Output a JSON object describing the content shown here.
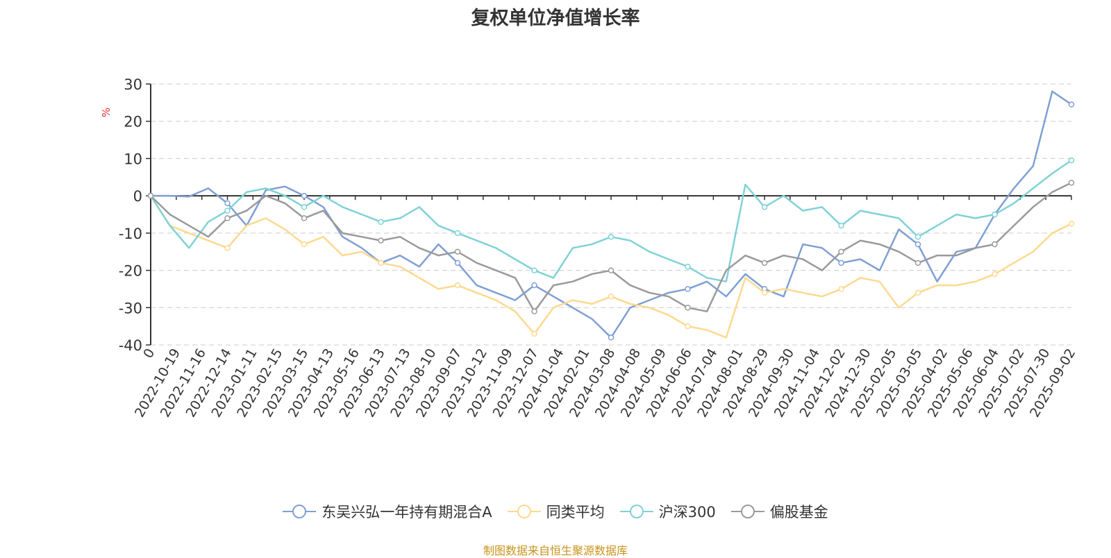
{
  "chart_data": {
    "type": "line",
    "title": "复权单位净值增长率",
    "ylabel": "%",
    "ylim": [
      -40,
      30
    ],
    "yticks": [
      30,
      20,
      10,
      0,
      -10,
      -20,
      -30,
      -40
    ],
    "x_start": "0",
    "xtick_labels": [
      "0",
      "2022-10-19",
      "2022-11-16",
      "2022-12-14",
      "2023-01-11",
      "2023-02-15",
      "2023-03-15",
      "2023-04-13",
      "2023-05-16",
      "2023-06-13",
      "2023-07-13",
      "2023-08-10",
      "2023-09-07",
      "2023-10-12",
      "2023-11-09",
      "2023-12-07",
      "2024-01-04",
      "2024-02-01",
      "2024-03-08",
      "2024-04-08",
      "2024-05-09",
      "2024-06-06",
      "2024-07-04",
      "2024-08-01",
      "2024-08-29",
      "2024-09-30",
      "2024-11-04",
      "2024-12-02",
      "2024-12-30",
      "2025-02-05",
      "2025-03-05",
      "2025-04-02",
      "2025-05-06",
      "2025-06-04",
      "2025-07-02",
      "2025-07-30",
      "2025-09-02"
    ],
    "grid": true,
    "legend_position": "bottom",
    "series": [
      {
        "name": "东吴兴弘一年持有期混合A",
        "color": "#7f9fd4",
        "values": [
          0,
          0,
          -0.2,
          2,
          -2,
          -8,
          1.5,
          2.5,
          0,
          -3,
          -11,
          -14,
          -18,
          -16,
          -19,
          -13,
          -18,
          -24,
          -26,
          -28,
          -24,
          -27,
          -30,
          -33,
          -38,
          -30,
          -28,
          -26,
          -25,
          -23,
          -27,
          -21,
          -25,
          -27,
          -13,
          -14,
          -18,
          -17,
          -20,
          -9,
          -13,
          -23,
          -15,
          -14,
          -5,
          2,
          8,
          28,
          24.5
        ]
      },
      {
        "name": "同类平均",
        "color": "#fcd98e",
        "values": [
          0,
          -8,
          -10,
          -12,
          -14,
          -8,
          -6,
          -9,
          -13,
          -11,
          -16,
          -15,
          -18,
          -19,
          -22,
          -25,
          -24,
          -26,
          -28,
          -31,
          -37,
          -30,
          -28,
          -29,
          -27,
          -29,
          -30,
          -32,
          -35,
          -36,
          -38,
          -22,
          -26,
          -25,
          -26,
          -27,
          -25,
          -22,
          -23,
          -30,
          -26,
          -24,
          -24,
          -23,
          -21,
          -18,
          -15,
          -10,
          -7.5
        ]
      },
      {
        "name": "沪深300",
        "color": "#7fd2d6",
        "values": [
          0,
          -8,
          -14,
          -7,
          -4,
          1,
          2,
          0,
          -3,
          0,
          -3,
          -5,
          -7,
          -6,
          -3,
          -8,
          -10,
          -12,
          -14,
          -17,
          -20,
          -22,
          -14,
          -13,
          -11,
          -12,
          -15,
          -17,
          -19,
          -22,
          -23,
          3,
          -3,
          0,
          -4,
          -3,
          -8,
          -4,
          -5,
          -6,
          -11,
          -8,
          -5,
          -6,
          -5,
          -2,
          2,
          6,
          9.5
        ]
      },
      {
        "name": "偏股基金",
        "color": "#9a9a9a",
        "values": [
          0,
          -5,
          -8,
          -11,
          -6,
          -4,
          0,
          -2,
          -6,
          -4,
          -10,
          -11,
          -12,
          -11,
          -14,
          -16,
          -15,
          -18,
          -20,
          -22,
          -31,
          -24,
          -23,
          -21,
          -20,
          -24,
          -26,
          -27,
          -30,
          -31,
          -20,
          -16,
          -18,
          -16,
          -17,
          -20,
          -15,
          -12,
          -13,
          -15,
          -18,
          -16,
          -16,
          -14,
          -13,
          -8,
          -3,
          1,
          3.5
        ]
      }
    ]
  },
  "source_note": "制图数据来自恒生聚源数据库"
}
